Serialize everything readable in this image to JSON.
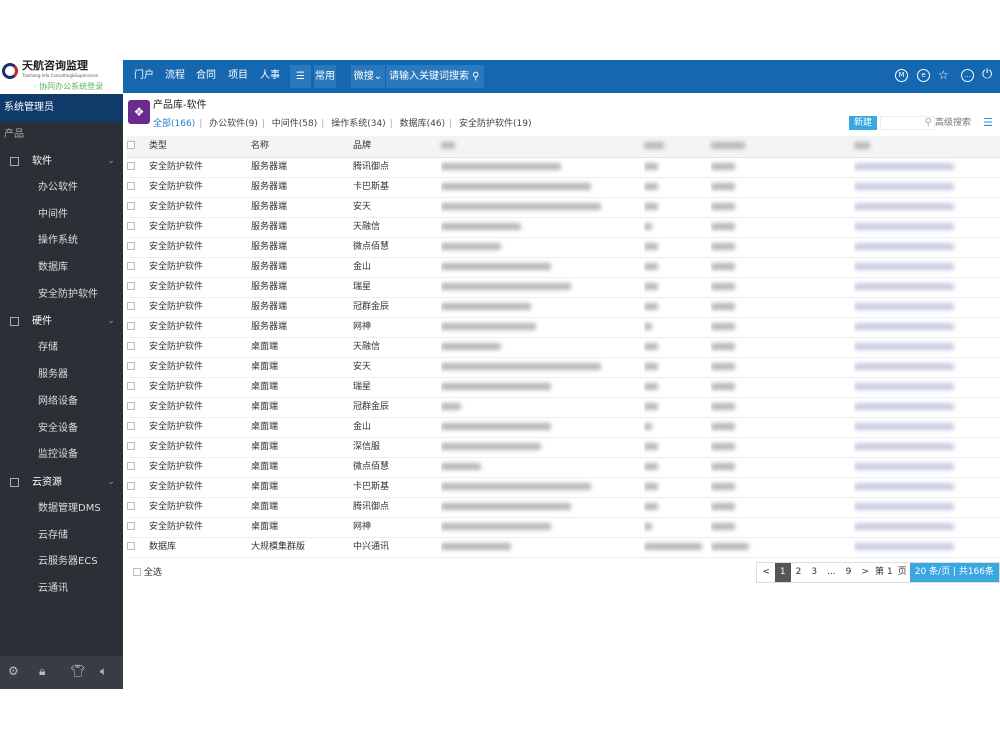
{
  "brand": {
    "name": "天航咨询监理",
    "sub": "Tianhang Info Consulting&Supervision",
    "tagline": "· 协同办公系统登录"
  },
  "header": {
    "nav": [
      "门户",
      "流程",
      "合同",
      "项目",
      "人事"
    ],
    "menu_icon": "☰",
    "common": "常用",
    "search_scope": "微搜",
    "search_placeholder": "请输入关键词搜索",
    "icons": [
      "m-icon",
      "e-icon",
      "star-icon",
      "more-icon",
      "power-icon"
    ]
  },
  "sidebar": {
    "user": "系统管理员",
    "section": "产品",
    "groups": [
      {
        "label": "软件",
        "items": [
          "办公软件",
          "中间件",
          "操作系统",
          "数据库",
          "安全防护软件"
        ]
      },
      {
        "label": "硬件",
        "items": [
          "存储",
          "服务器",
          "网络设备",
          "安全设备",
          "监控设备"
        ]
      },
      {
        "label": "云资源",
        "items": [
          "数据管理DMS",
          "云存储",
          "云服务器ECS",
          "云通讯"
        ]
      }
    ]
  },
  "page": {
    "title": "产品库-软件",
    "tabs": [
      "全部(166)",
      "办公软件(9)",
      "中间件(58)",
      "操作系统(34)",
      "数据库(46)",
      "安全防护软件(19)"
    ],
    "new_label": "新建",
    "adv_search": "高级搜索"
  },
  "table": {
    "headers": [
      "类型",
      "名称",
      "品牌"
    ],
    "rows": [
      [
        "安全防护软件",
        "服务器端",
        "腾讯御点"
      ],
      [
        "安全防护软件",
        "服务器端",
        "卡巴斯基"
      ],
      [
        "安全防护软件",
        "服务器端",
        "安天"
      ],
      [
        "安全防护软件",
        "服务器端",
        "天融信"
      ],
      [
        "安全防护软件",
        "服务器端",
        "微点佰慧"
      ],
      [
        "安全防护软件",
        "服务器端",
        "金山"
      ],
      [
        "安全防护软件",
        "服务器端",
        "瑞星"
      ],
      [
        "安全防护软件",
        "服务器端",
        "冠群金辰"
      ],
      [
        "安全防护软件",
        "服务器端",
        "网神"
      ],
      [
        "安全防护软件",
        "桌面端",
        "天融信"
      ],
      [
        "安全防护软件",
        "桌面端",
        "安天"
      ],
      [
        "安全防护软件",
        "桌面端",
        "瑞星"
      ],
      [
        "安全防护软件",
        "桌面端",
        "冠群金辰"
      ],
      [
        "安全防护软件",
        "桌面端",
        "金山"
      ],
      [
        "安全防护软件",
        "桌面端",
        "深信服"
      ],
      [
        "安全防护软件",
        "桌面端",
        "微点佰慧"
      ],
      [
        "安全防护软件",
        "桌面端",
        "卡巴斯基"
      ],
      [
        "安全防护软件",
        "桌面端",
        "腾讯御点"
      ],
      [
        "安全防护软件",
        "桌面端",
        "网神"
      ],
      [
        "数据库",
        "大规模集群版",
        "中兴通讯"
      ]
    ]
  },
  "footer": {
    "select_all": "全选",
    "pages": [
      "<",
      "1",
      "2",
      "3",
      "...",
      "9",
      ">"
    ],
    "current_page": "1",
    "goto_prefix": "第",
    "goto_page": "1",
    "goto_suffix": "页",
    "page_info": "20 条/页 | 共166条"
  }
}
